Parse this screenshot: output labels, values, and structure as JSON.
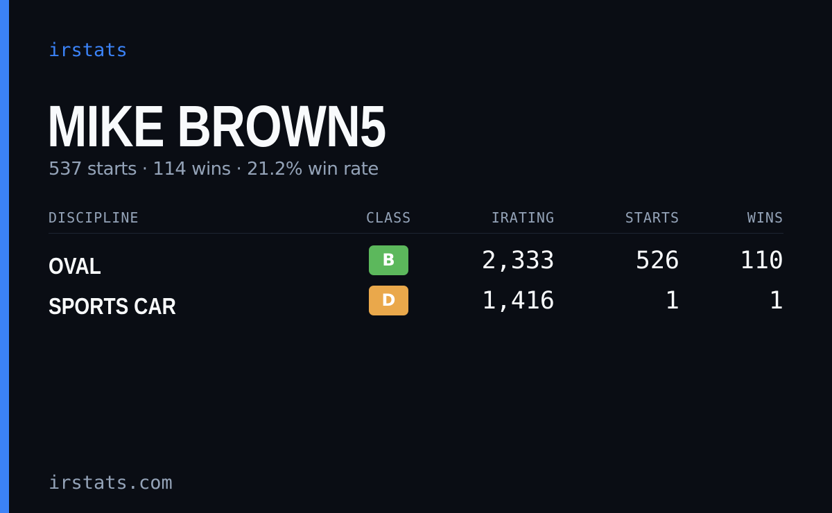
{
  "brand": "irstats",
  "player": {
    "name": "MIKE BROWN5",
    "summary": "537 starts · 114 wins · 21.2% win rate"
  },
  "table": {
    "headers": {
      "discipline": "DISCIPLINE",
      "class": "CLASS",
      "irating": "IRATING",
      "starts": "STARTS",
      "wins": "WINS"
    },
    "rows": [
      {
        "discipline": "OVAL",
        "class": "B",
        "class_color": "#5cb85c",
        "irating": "2,333",
        "starts": "526",
        "wins": "110"
      },
      {
        "discipline": "SPORTS CAR",
        "class": "D",
        "class_color": "#eaa84b",
        "irating": "1,416",
        "starts": "1",
        "wins": "1"
      }
    ]
  },
  "footer": "irstats.com",
  "colors": {
    "background": "#0a0d14",
    "accent": "#3b82f6",
    "text_primary": "#f8fafc",
    "text_muted": "#94a3b8"
  }
}
